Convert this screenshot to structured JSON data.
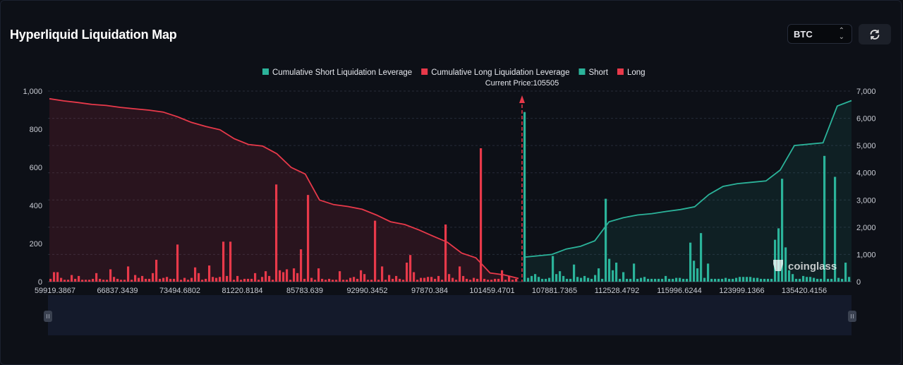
{
  "header": {
    "title": "Hyperliquid Liquidation Map",
    "coin_select": "BTC",
    "refresh_icon": "refresh-icon"
  },
  "colors": {
    "short": "#2bb39a",
    "long": "#e8394a",
    "background": "#0d1017",
    "slider": "#141a2b"
  },
  "watermark": "coinglass",
  "chart_data": {
    "type": "bar",
    "legend": [
      {
        "label": "Cumulative Short Liquidation Leverage",
        "color": "#2bb39a"
      },
      {
        "label": "Cumulative Long Liquidation Leverage",
        "color": "#e8394a"
      },
      {
        "label": "Short",
        "color": "#2bb39a"
      },
      {
        "label": "Long",
        "color": "#e8394a"
      }
    ],
    "legend_placement": "top-center",
    "current_price_label": "Current Price:105505",
    "current_price": 105505,
    "x_tick_labels": [
      "59919.3867",
      "66837.3439",
      "73494.6802",
      "81220.8184",
      "85783.639",
      "92990.3452",
      "97870.384",
      "101459.4701",
      "107881.7365",
      "112528.4792",
      "115996.6244",
      "123999.1366",
      "135420.4156"
    ],
    "y_left": {
      "range": [
        0,
        1000
      ],
      "ticks": [
        "0",
        "200",
        "400",
        "600",
        "800",
        "1,000"
      ]
    },
    "y_right": {
      "range": [
        0,
        7000
      ],
      "ticks": [
        "0",
        "1,000",
        "2,000",
        "3,000",
        "4,000",
        "5,000",
        "6,000",
        "7,000"
      ]
    },
    "grid": true,
    "long_bars": [
      15,
      50,
      50,
      20,
      10,
      10,
      35,
      15,
      30,
      10,
      10,
      10,
      15,
      45,
      15,
      10,
      10,
      65,
      25,
      15,
      10,
      10,
      80,
      10,
      35,
      20,
      30,
      15,
      15,
      45,
      115,
      15,
      20,
      25,
      15,
      15,
      195,
      10,
      20,
      10,
      20,
      75,
      45,
      10,
      15,
      85,
      25,
      20,
      25,
      210,
      30,
      210,
      10,
      30,
      10,
      15,
      15,
      15,
      45,
      10,
      25,
      55,
      30,
      10,
      510,
      60,
      50,
      65,
      10,
      70,
      45,
      170,
      15,
      455,
      20,
      10,
      70,
      15,
      10,
      15,
      10,
      10,
      55,
      10,
      10,
      20,
      25,
      15,
      60,
      40,
      10,
      10,
      320,
      10,
      80,
      10,
      35,
      15,
      30,
      15,
      10,
      100,
      140,
      50,
      10,
      20,
      20,
      25,
      25,
      15,
      30,
      10,
      300,
      40,
      20,
      10,
      80,
      30,
      15,
      10,
      20,
      15,
      700,
      15,
      10,
      10,
      15,
      15,
      60,
      10,
      30,
      10,
      15
    ],
    "short_bars": [
      890,
      20,
      30,
      40,
      25,
      15,
      15,
      20,
      135,
      40,
      55,
      30,
      15,
      15,
      90,
      25,
      20,
      30,
      20,
      15,
      35,
      70,
      15,
      435,
      120,
      60,
      100,
      15,
      50,
      15,
      15,
      95,
      15,
      20,
      25,
      15,
      15,
      15,
      15,
      15,
      30,
      15,
      15,
      20,
      20,
      15,
      15,
      205,
      110,
      70,
      255,
      20,
      95,
      15,
      15,
      15,
      15,
      20,
      15,
      15,
      20,
      25,
      25,
      25,
      25,
      20,
      20,
      15,
      15,
      15,
      15,
      220,
      280,
      540,
      180,
      60,
      40,
      15,
      15,
      30,
      25,
      25,
      20,
      15,
      15,
      660,
      15,
      15,
      550,
      20,
      15,
      100,
      25
    ],
    "cumulative_long": [
      6720,
      6640,
      6580,
      6510,
      6470,
      6400,
      6350,
      6300,
      6230,
      6060,
      5850,
      5700,
      5580,
      5250,
      5040,
      4980,
      4700,
      4200,
      3950,
      3000,
      2830,
      2760,
      2660,
      2450,
      2200,
      2100,
      1900,
      1670,
      1450,
      1050,
      880,
      320,
      250,
      120
    ],
    "cumulative_short": [
      900,
      950,
      1000,
      1200,
      1300,
      1500,
      2200,
      2350,
      2450,
      2500,
      2580,
      2650,
      2750,
      3200,
      3500,
      3600,
      3650,
      3700,
      4100,
      5000,
      5050,
      5100,
      6450,
      6650
    ]
  }
}
